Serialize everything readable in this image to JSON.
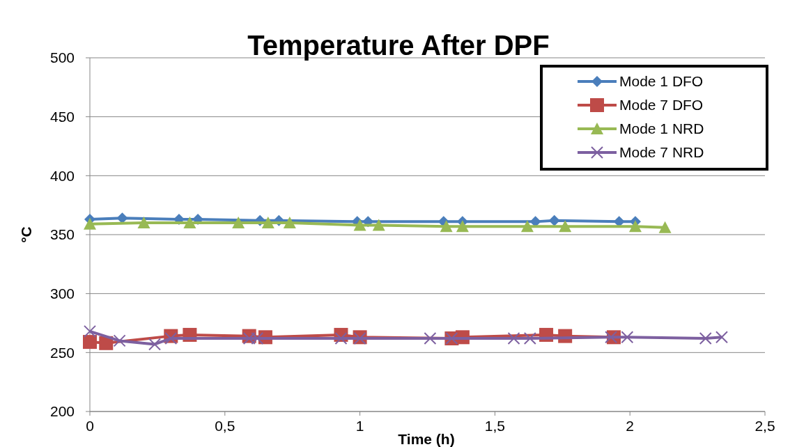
{
  "chart_data": {
    "type": "line",
    "title": "Temperature After DPF",
    "xlabel": "Time (h)",
    "ylabel": "°C",
    "xlim": [
      0,
      2.5
    ],
    "ylim": [
      200,
      500
    ],
    "xticks": [
      0,
      {
        "value": 0.5,
        "label": "0,5"
      },
      1,
      {
        "value": 1.5,
        "label": "1,5"
      },
      2,
      {
        "value": 2.5,
        "label": "2,5"
      }
    ],
    "yticks": [
      200,
      250,
      300,
      350,
      400,
      450,
      500
    ],
    "grid": "y",
    "legend": "top right",
    "series": [
      {
        "name": "Mode 1 DFO",
        "color": "#4a7ebb",
        "marker": "diamond",
        "x": [
          0,
          0.12,
          0.33,
          0.4,
          0.63,
          0.7,
          0.99,
          1.03,
          1.31,
          1.38,
          1.65,
          1.72,
          1.96,
          2.02
        ],
        "values": [
          363,
          364,
          363,
          363,
          362,
          362,
          361,
          361,
          361,
          361,
          361,
          362,
          361,
          361
        ]
      },
      {
        "name": "Mode 7 DFO",
        "color": "#be4b48",
        "marker": "square",
        "x": [
          0,
          0.06,
          0.3,
          0.37,
          0.59,
          0.65,
          0.93,
          1.0,
          1.34,
          1.38,
          1.69,
          1.76,
          1.94
        ],
        "values": [
          259,
          258,
          264,
          265,
          264,
          263,
          265,
          263,
          262,
          263,
          265,
          264,
          263
        ]
      },
      {
        "name": "Mode 1 NRD",
        "color": "#98b954",
        "marker": "triangle",
        "x": [
          0,
          0.2,
          0.37,
          0.55,
          0.66,
          0.74,
          1.0,
          1.07,
          1.32,
          1.38,
          1.62,
          1.76,
          2.02,
          2.13
        ],
        "values": [
          359,
          360,
          360,
          360,
          360,
          360,
          358,
          358,
          357,
          357,
          357,
          357,
          357,
          356
        ]
      },
      {
        "name": "Mode 7 NRD",
        "color": "#7d60a0",
        "marker": "cross",
        "x": [
          0,
          0.11,
          0.24,
          0.3,
          0.59,
          0.62,
          0.93,
          1.0,
          1.26,
          1.34,
          1.57,
          1.63,
          1.93,
          1.99,
          2.28,
          2.34
        ],
        "values": [
          268,
          260,
          257,
          262,
          262,
          262,
          262,
          262,
          262,
          262,
          262,
          262,
          263,
          263,
          262,
          263
        ]
      }
    ]
  }
}
